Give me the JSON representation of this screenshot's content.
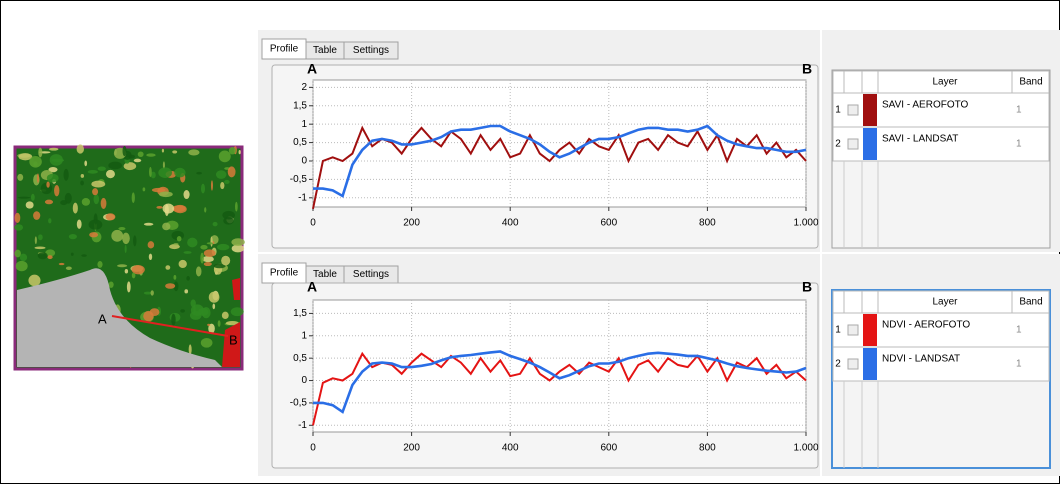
{
  "map": {
    "labels": [
      "A",
      "B"
    ]
  },
  "panels": [
    {
      "tabs": [
        "Profile",
        "Table",
        "Settings"
      ],
      "layer_table": {
        "headers": [
          "Layer",
          "Band"
        ],
        "rows": [
          [
            1,
            "SAVI - AEROFOTO",
            1
          ],
          [
            2,
            "SAVI - LANDSAT",
            1
          ]
        ]
      }
    },
    {
      "tabs": [
        "Profile",
        "Table",
        "Settings"
      ],
      "layer_table": {
        "headers": [
          "Layer",
          "Band"
        ],
        "rows": [
          [
            1,
            "NDVI - AEROFOTO",
            1
          ],
          [
            2,
            "NDVI - LANDSAT",
            1
          ]
        ]
      }
    }
  ],
  "chart_data": [
    {
      "type": "line",
      "start_label": "A",
      "end_label": "B",
      "grid": true,
      "xlim": [
        0,
        1000
      ],
      "ylim": [
        -1.25,
        2.2
      ],
      "xticks": [
        0,
        200,
        400,
        600,
        800,
        {
          "value": 1000,
          "label": "1.000"
        }
      ],
      "yticks": [
        2,
        {
          "value": 1.5,
          "label": "1,5"
        },
        1,
        {
          "value": 0.5,
          "label": "0,5"
        },
        0,
        {
          "value": -0.5,
          "label": "-0,5"
        },
        -1
      ],
      "x": [
        0,
        20,
        40,
        60,
        80,
        100,
        120,
        140,
        160,
        180,
        200,
        220,
        240,
        260,
        280,
        300,
        320,
        340,
        360,
        380,
        400,
        420,
        440,
        460,
        480,
        500,
        520,
        540,
        560,
        580,
        600,
        620,
        640,
        660,
        680,
        700,
        720,
        740,
        760,
        780,
        800,
        820,
        840,
        860,
        880,
        900,
        920,
        940,
        960,
        980,
        1000
      ],
      "series": [
        {
          "name": "SAVI - AEROFOTO",
          "color": "#a00f0f",
          "values": [
            -1.3,
            0.0,
            0.1,
            0.0,
            0.2,
            0.9,
            0.4,
            0.6,
            0.5,
            0.2,
            0.6,
            0.9,
            0.6,
            0.4,
            0.8,
            0.6,
            0.2,
            0.7,
            0.3,
            0.6,
            0.1,
            0.2,
            0.7,
            0.2,
            0.0,
            0.3,
            0.5,
            0.2,
            0.6,
            0.4,
            0.3,
            0.7,
            0.0,
            0.5,
            0.6,
            0.3,
            0.7,
            0.5,
            0.4,
            0.8,
            0.3,
            0.7,
            0.0,
            0.6,
            0.4,
            0.7,
            0.2,
            0.5,
            0.1,
            0.3,
            0.0
          ]
        },
        {
          "name": "SAVI - LANDSAT",
          "color": "#2a6ee6",
          "values": [
            -0.75,
            -0.75,
            -0.8,
            -0.95,
            -0.1,
            0.3,
            0.55,
            0.6,
            0.55,
            0.45,
            0.45,
            0.5,
            0.55,
            0.65,
            0.8,
            0.85,
            0.85,
            0.9,
            0.95,
            0.95,
            0.8,
            0.7,
            0.6,
            0.45,
            0.25,
            0.1,
            0.2,
            0.35,
            0.5,
            0.6,
            0.6,
            0.65,
            0.75,
            0.85,
            0.9,
            0.9,
            0.85,
            0.85,
            0.8,
            0.85,
            0.95,
            0.7,
            0.55,
            0.45,
            0.4,
            0.35,
            0.35,
            0.3,
            0.25,
            0.25,
            0.3
          ]
        }
      ]
    },
    {
      "type": "line",
      "start_label": "A",
      "end_label": "B",
      "grid": true,
      "xlim": [
        0,
        1000
      ],
      "ylim": [
        -1.15,
        1.8
      ],
      "xticks": [
        0,
        200,
        400,
        600,
        800,
        {
          "value": 1000,
          "label": "1.000"
        }
      ],
      "yticks": [
        {
          "value": 1.5,
          "label": "1,5"
        },
        1,
        {
          "value": 0.5,
          "label": "0,5"
        },
        0,
        {
          "value": -0.5,
          "label": "-0,5"
        },
        -1
      ],
      "x": [
        0,
        20,
        40,
        60,
        80,
        100,
        120,
        140,
        160,
        180,
        200,
        220,
        240,
        260,
        280,
        300,
        320,
        340,
        360,
        380,
        400,
        420,
        440,
        460,
        480,
        500,
        520,
        540,
        560,
        580,
        600,
        620,
        640,
        660,
        680,
        700,
        720,
        740,
        760,
        780,
        800,
        820,
        840,
        860,
        880,
        900,
        920,
        940,
        960,
        980,
        1000
      ],
      "series": [
        {
          "name": "NDVI - AEROFOTO",
          "color": "#e41414",
          "values": [
            -1.0,
            -0.05,
            0.05,
            0.0,
            0.15,
            0.6,
            0.3,
            0.4,
            0.35,
            0.15,
            0.4,
            0.6,
            0.45,
            0.3,
            0.55,
            0.4,
            0.15,
            0.5,
            0.2,
            0.45,
            0.1,
            0.15,
            0.5,
            0.15,
            0.0,
            0.2,
            0.35,
            0.15,
            0.4,
            0.3,
            0.2,
            0.5,
            0.0,
            0.35,
            0.45,
            0.2,
            0.5,
            0.35,
            0.3,
            0.55,
            0.2,
            0.5,
            0.0,
            0.4,
            0.3,
            0.5,
            0.15,
            0.35,
            0.05,
            0.2,
            0.0
          ]
        },
        {
          "name": "NDVI - LANDSAT",
          "color": "#2a6ee6",
          "values": [
            -0.5,
            -0.5,
            -0.55,
            -0.7,
            -0.1,
            0.2,
            0.38,
            0.4,
            0.38,
            0.3,
            0.3,
            0.33,
            0.37,
            0.45,
            0.52,
            0.55,
            0.57,
            0.6,
            0.63,
            0.65,
            0.55,
            0.48,
            0.4,
            0.3,
            0.18,
            0.05,
            0.12,
            0.22,
            0.32,
            0.38,
            0.38,
            0.42,
            0.5,
            0.55,
            0.6,
            0.62,
            0.6,
            0.58,
            0.55,
            0.55,
            0.5,
            0.45,
            0.38,
            0.32,
            0.28,
            0.25,
            0.22,
            0.2,
            0.18,
            0.2,
            0.28
          ]
        }
      ]
    }
  ]
}
